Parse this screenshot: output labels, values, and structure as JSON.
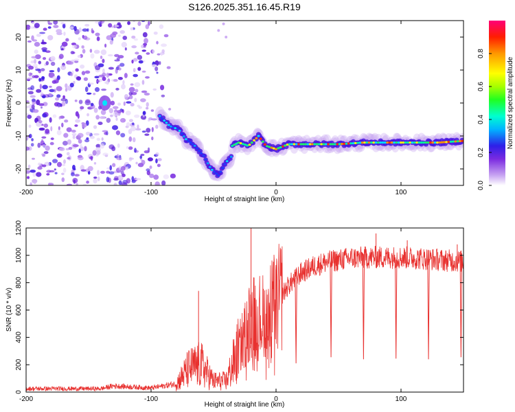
{
  "title": "S126.2025.351.16.45.R19",
  "chart_data": [
    {
      "type": "heatmap",
      "name": "spectrogram",
      "xlabel": "Height of straight line (km)",
      "ylabel": "Frequency (Hz)",
      "xlim": [
        -200,
        150
      ],
      "ylim": [
        -25,
        25
      ],
      "xticks": [
        -200,
        -100,
        0,
        100
      ],
      "yticks": [
        -20,
        -10,
        0,
        10,
        20
      ],
      "colorbar": {
        "label": "Normalized spectral amplitude",
        "range": [
          0,
          1
        ],
        "ticks": [
          0.0,
          0.2,
          0.4,
          0.6,
          0.8
        ]
      },
      "features": {
        "noise_region_x": [
          -200,
          -90
        ],
        "descending_track": [
          {
            "x": -93,
            "y": -4
          },
          {
            "x": -85,
            "y": -7
          },
          {
            "x": -78,
            "y": -8
          },
          {
            "x": -72,
            "y": -11
          },
          {
            "x": -65,
            "y": -13
          },
          {
            "x": -58,
            "y": -16
          },
          {
            "x": -52,
            "y": -20
          },
          {
            "x": -46,
            "y": -22
          },
          {
            "x": -40,
            "y": -18
          },
          {
            "x": -35,
            "y": -16
          }
        ],
        "flat_track": [
          {
            "x": -35,
            "y": -13
          },
          {
            "x": -30,
            "y": -12
          },
          {
            "x": -22,
            "y": -13
          },
          {
            "x": -14,
            "y": -10
          },
          {
            "x": -8,
            "y": -13
          },
          {
            "x": 0,
            "y": -14
          },
          {
            "x": 10,
            "y": -12.5
          },
          {
            "x": 30,
            "y": -12.5
          },
          {
            "x": 50,
            "y": -12.5
          },
          {
            "x": 70,
            "y": -12
          },
          {
            "x": 90,
            "y": -12
          },
          {
            "x": 110,
            "y": -12
          },
          {
            "x": 130,
            "y": -12
          },
          {
            "x": 150,
            "y": -11.5
          }
        ],
        "blob_near": {
          "x": -137,
          "y": 0
        }
      }
    },
    {
      "type": "line",
      "name": "snr",
      "xlabel": "Height of straight line (km)",
      "ylabel": "SNR (10 * v/v)",
      "xlim": [
        -200,
        150
      ],
      "ylim": [
        0,
        1200
      ],
      "xticks": [
        -200,
        -100,
        0,
        100
      ],
      "yticks": [
        0,
        200,
        400,
        600,
        800,
        1000,
        1200
      ],
      "color": "#e8312f",
      "envelope": [
        {
          "x": -200,
          "y": 25
        },
        {
          "x": -140,
          "y": 25
        },
        {
          "x": -130,
          "y": 45
        },
        {
          "x": -100,
          "y": 30
        },
        {
          "x": -80,
          "y": 60
        },
        {
          "x": -70,
          "y": 170
        },
        {
          "x": -60,
          "y": 200
        },
        {
          "x": -50,
          "y": 80
        },
        {
          "x": -40,
          "y": 80
        },
        {
          "x": -30,
          "y": 300
        },
        {
          "x": -20,
          "y": 550
        },
        {
          "x": -10,
          "y": 550
        },
        {
          "x": 0,
          "y": 650
        },
        {
          "x": 10,
          "y": 780
        },
        {
          "x": 20,
          "y": 870
        },
        {
          "x": 30,
          "y": 920
        },
        {
          "x": 40,
          "y": 950
        },
        {
          "x": 60,
          "y": 980
        },
        {
          "x": 80,
          "y": 985
        },
        {
          "x": 100,
          "y": 985
        },
        {
          "x": 120,
          "y": 975
        },
        {
          "x": 140,
          "y": 960
        },
        {
          "x": 150,
          "y": 955
        }
      ],
      "spikes": [
        {
          "x": -62,
          "y": 740
        },
        {
          "x": -20,
          "y": 1200
        },
        {
          "x": 80,
          "y": 1160
        },
        {
          "x": 105,
          "y": 1110
        },
        {
          "x": 145,
          "y": 1080
        }
      ],
      "dips": [
        {
          "x": 16,
          "y": 210
        },
        {
          "x": 44,
          "y": 255
        },
        {
          "x": 70,
          "y": 240
        },
        {
          "x": 96,
          "y": 245
        },
        {
          "x": 122,
          "y": 240
        },
        {
          "x": 148,
          "y": 255
        }
      ]
    }
  ]
}
